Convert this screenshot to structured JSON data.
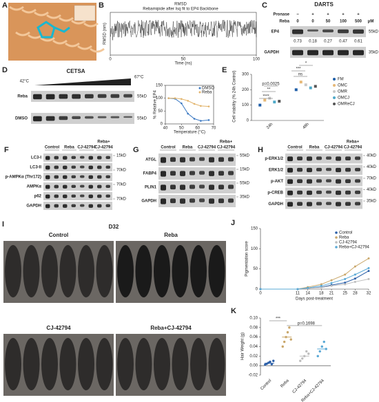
{
  "A": {
    "label": "A"
  },
  "B": {
    "label": "B",
    "title": "RMSD",
    "subtitle": "Rebamipide after lsq fit to EP4 Backbone",
    "xlabel": "Time (ns)",
    "ylabel": "RMSD (nm)",
    "xlim": [
      0,
      100
    ],
    "xticks": [
      0,
      50,
      100
    ]
  },
  "C": {
    "label": "C",
    "title": "DARTS",
    "rows": [
      {
        "name": "Pronase",
        "cells": [
          "−",
          "+",
          "+",
          "+",
          "+"
        ]
      },
      {
        "name": "Reba",
        "cells": [
          "0",
          "0",
          "50",
          "100",
          "500"
        ],
        "unit": "μM"
      }
    ],
    "bands": [
      "EP4",
      "GAPDH"
    ],
    "sizes": [
      "55kD",
      "35kD"
    ],
    "quant": [
      "0.73",
      "0.18",
      "0.27",
      "0.47",
      "0.61"
    ]
  },
  "D": {
    "label": "D",
    "title": "CETSA",
    "temps": [
      "42°C",
      "67°C"
    ],
    "bands": [
      "Reba",
      "DMSO"
    ],
    "sizes": [
      "55kD",
      "55kD"
    ],
    "curve": {
      "type": "line",
      "xlabel": "Temperature (°C)",
      "ylabel": "% Relative EP4",
      "xlim": [
        40,
        70
      ],
      "ylim": [
        0,
        150
      ],
      "xticks": [
        40,
        50,
        60,
        70
      ],
      "yticks": [
        0,
        50,
        100,
        150
      ],
      "x": [
        42,
        46,
        50,
        54,
        58,
        62,
        67
      ],
      "series": [
        {
          "name": "DMSO",
          "color": "#3a78c2",
          "values": [
            100,
            98,
            80,
            40,
            20,
            12,
            15
          ]
        },
        {
          "name": "Reba",
          "color": "#e2b36a",
          "values": [
            100,
            100,
            97,
            90,
            78,
            70,
            68
          ]
        }
      ]
    }
  },
  "E": {
    "label": "E",
    "type": "bar",
    "ylabel": "Cell viability (% 24h Control)",
    "ylim": [
      0,
      300
    ],
    "yticks": [
      0,
      100,
      200,
      300
    ],
    "categories": [
      "24h",
      "48h"
    ],
    "series": [
      {
        "name": "FM",
        "color": "#1f5fa8",
        "values": [
          100,
          200
        ]
      },
      {
        "name": "OMC",
        "color": "#e6b877",
        "values": [
          132,
          250
        ]
      },
      {
        "name": "OMR",
        "color": "#c9c9c9",
        "values": [
          145,
          232
        ]
      },
      {
        "name": "OMCJ",
        "color": "#4ea9c9",
        "values": [
          120,
          212
        ]
      },
      {
        "name": "OMReCJ",
        "color": "#555555",
        "values": [
          125,
          222
        ]
      }
    ],
    "annotations": [
      "p=0.0025",
      "**",
      "****",
      "***",
      "ns",
      "*"
    ]
  },
  "F": {
    "label": "F",
    "cols": [
      "Control",
      "Reba",
      "CJ-42794",
      "CJ-42794"
    ],
    "combo": "Reba+",
    "rows": [
      "LC3-I",
      "LC3-II",
      "p-AMPKα (Thr172)",
      "AMPKα",
      "p62",
      "GAPDH"
    ],
    "sizes": [
      "15kD",
      "70kD",
      "70kD",
      "70kD"
    ]
  },
  "G": {
    "label": "G",
    "cols": [
      "Control",
      "Reba",
      "CJ-42794",
      "CJ-42794"
    ],
    "combo": "Reba+",
    "rows": [
      "ATGL",
      "FABP4",
      "PLIN1",
      "GAPDH"
    ],
    "sizes": [
      "55kD",
      "15kD",
      "55kD",
      "35kD"
    ]
  },
  "H": {
    "label": "H",
    "cols": [
      "Control",
      "Reba",
      "CJ-42794",
      "CJ-42794"
    ],
    "combo": "Reba+",
    "rows": [
      "p-ERK1/2",
      "ERK1/2",
      "p-AKT",
      "p-CREB",
      "GAPDH"
    ],
    "sizes": [
      "40kD",
      "40kD",
      "70kD",
      "40kD",
      "35kD"
    ]
  },
  "I": {
    "label": "I",
    "day": "D32",
    "groups": [
      "Control",
      "Reba",
      "CJ-42794",
      "Reba+CJ-42794"
    ]
  },
  "J": {
    "label": "J",
    "chart_data": {
      "type": "line",
      "xlabel": "Days post-treatment",
      "ylabel": "Pigmentation score",
      "xlim": [
        0,
        32
      ],
      "ylim": [
        0,
        150
      ],
      "xticks": [
        0,
        11,
        14,
        18,
        21,
        25,
        28,
        32
      ],
      "yticks": [
        0,
        50,
        100,
        150
      ],
      "x": [
        0,
        11,
        14,
        18,
        21,
        25,
        28,
        32
      ],
      "series": [
        {
          "name": "Control",
          "color": "#2b5fa8",
          "values": [
            0,
            0,
            2,
            5,
            10,
            16,
            26,
            45
          ]
        },
        {
          "name": "Reba",
          "color": "#c9a76a",
          "values": [
            0,
            0,
            5,
            12,
            22,
            36,
            56,
            76
          ]
        },
        {
          "name": "CJ-42794",
          "color": "#bdbdbd",
          "values": [
            0,
            0,
            2,
            4,
            8,
            12,
            18,
            25
          ]
        },
        {
          "name": "Reba+CJ-42794",
          "color": "#5aa9d6",
          "values": [
            0,
            0,
            3,
            8,
            15,
            25,
            36,
            52
          ]
        }
      ]
    }
  },
  "K": {
    "label": "K",
    "chart_data": {
      "type": "scatter",
      "ylabel": "Hair Weight (g)",
      "ylim": [
        -0.02,
        0.1
      ],
      "yticks": [
        {
          "value": -0.02,
          "label": "-0.02"
        },
        {
          "value": 0,
          "label": "0.00"
        },
        {
          "value": 0.02,
          "label": "0.02"
        },
        {
          "value": 0.04,
          "label": "0.04"
        },
        {
          "value": 0.06,
          "label": "0.06"
        },
        {
          "value": 0.08,
          "label": "0.08"
        },
        {
          "value": 0.1,
          "label": "0.10"
        }
      ],
      "categories": [
        "Control",
        "Reba",
        "CJ-42794",
        "Reba+CJ-42794"
      ],
      "colors": [
        "#2b5fa8",
        "#c9a76a",
        "#bdbdbd",
        "#5aa9d6"
      ],
      "means": [
        0.005,
        0.06,
        0.02,
        0.035
      ],
      "points": [
        [
          0.002,
          0.004,
          0.006,
          0.008,
          0.003,
          0.01
        ],
        [
          0.04,
          0.05,
          0.06,
          0.07,
          0.08,
          0.055
        ],
        [
          0.01,
          0.015,
          0.02,
          0.03,
          0.025
        ],
        [
          0.02,
          0.03,
          0.04,
          0.05,
          0.035
        ]
      ],
      "annotations": [
        "***",
        "p=0.1698"
      ]
    }
  }
}
